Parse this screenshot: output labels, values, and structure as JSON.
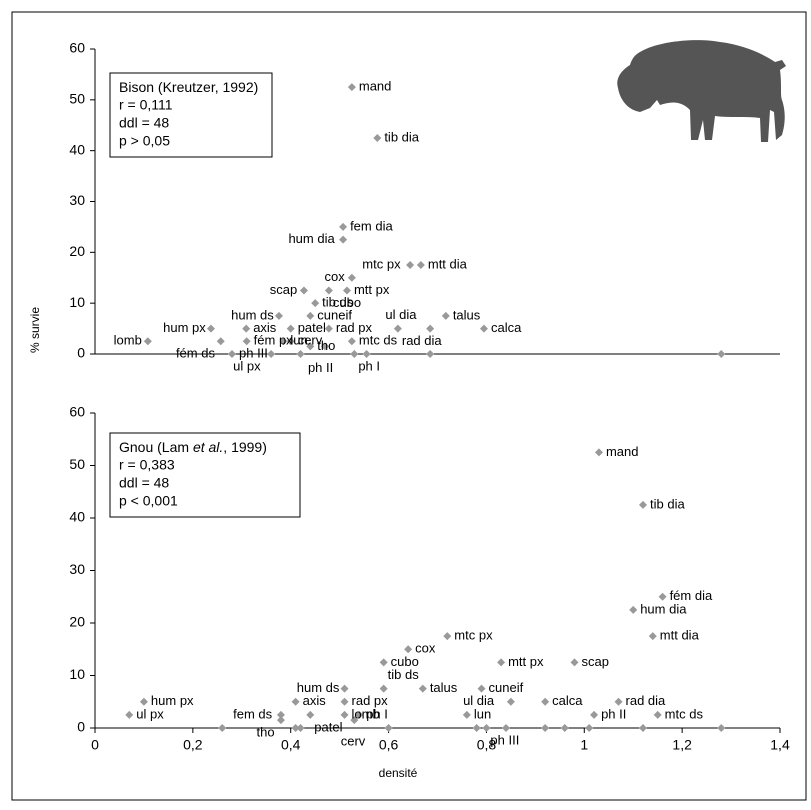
{
  "chart_data": [
    {
      "type": "scatter",
      "ylabel": "% survie",
      "annotation": {
        "title_parts": [
          "Bison (Kreutzer, 1992)"
        ],
        "lines": [
          "r = 0,111",
          "ddl = 48",
          "p > 0,05"
        ]
      },
      "color": "#999999",
      "xlim": [
        0,
        1.4
      ],
      "ylim": [
        0,
        60
      ],
      "yticks": [
        0,
        10,
        20,
        30,
        40,
        50,
        60
      ],
      "point_labels": [
        "mand",
        "tib dia",
        "fem dia",
        "hum dia",
        "mtc px",
        "mtt dia",
        "cox",
        "cubo",
        "mtt px",
        "scap",
        "tib ds",
        "cuneif",
        "hum ds",
        "patel",
        "rad px",
        "axis",
        "hum px",
        "fém px",
        "fém ds",
        "lomb",
        "rad dia",
        "talus",
        "ul dia",
        "calca",
        "mtc ds",
        "ph I",
        "ph II",
        "tho",
        "cerv",
        "lun",
        "ul px",
        "ph III",
        null,
        null,
        null,
        null
      ],
      "x": [
        0.525,
        0.577,
        0.507,
        0.507,
        0.644,
        0.666,
        0.525,
        0.478,
        0.515,
        0.427,
        0.45,
        0.44,
        0.376,
        0.4,
        0.478,
        0.309,
        0.237,
        0.31,
        0.257,
        0.108,
        0.619,
        0.717,
        0.685,
        0.795,
        0.525,
        0.53,
        0.47,
        0.44,
        0.4,
        0.385,
        0.36,
        0.28,
        0.685,
        1.28,
        0.555,
        0.42
      ],
      "values": [
        52.5,
        42.5,
        25,
        22.5,
        17.5,
        17.5,
        15,
        12.5,
        12.5,
        12.5,
        10,
        7.5,
        7.5,
        5,
        5,
        5,
        5,
        2.5,
        2.5,
        2.5,
        5,
        7.5,
        5,
        5,
        2.5,
        0,
        1.5,
        1.5,
        2.5,
        2.5,
        0,
        0,
        0,
        0,
        0,
        0
      ]
    },
    {
      "type": "scatter",
      "xlabel": "densité",
      "annotation": {
        "title_parts": [
          "Gnou (Lam ",
          "et al.",
          ", 1999)"
        ],
        "lines": [
          "r = 0,383",
          "ddl = 48",
          "p < 0,001"
        ]
      },
      "color": "#999999",
      "xlim": [
        0,
        1.4
      ],
      "ylim": [
        0,
        60
      ],
      "yticks": [
        0,
        10,
        20,
        30,
        40,
        50,
        60
      ],
      "xticks": [
        0,
        {
          "value": 0.2,
          "label": "0,2"
        },
        {
          "value": 0.4,
          "label": "0,4"
        },
        {
          "value": 0.6,
          "label": "0,6"
        },
        {
          "value": 0.8,
          "label": "0,8"
        },
        1,
        {
          "value": 1.2,
          "label": "1,2"
        },
        {
          "value": 1.4,
          "label": "1,4"
        }
      ],
      "point_labels": [
        "mand",
        "tib dia",
        "fém dia",
        "hum dia",
        "mtt dia",
        "mtc px",
        "cox",
        "cubo",
        "mtt px",
        "scap",
        "hum ds",
        "tib ds",
        "talus",
        "cuneif",
        "rad px",
        "axis",
        "hum px",
        "rad dia",
        "calca",
        "ul dia",
        "mtc ds",
        "ph II",
        "lun",
        "ph I",
        "fem ds",
        "tho",
        "patel",
        "lomb",
        "cerv",
        "ul px",
        "ph III",
        null,
        null,
        null,
        null,
        null,
        null,
        null,
        null,
        null,
        null,
        null
      ],
      "x": [
        1.03,
        1.12,
        1.16,
        1.1,
        1.14,
        0.72,
        0.64,
        0.59,
        0.83,
        0.98,
        0.51,
        0.59,
        0.67,
        0.79,
        0.51,
        0.41,
        0.1,
        1.07,
        0.92,
        0.85,
        1.15,
        1.02,
        0.76,
        0.54,
        0.38,
        0.38,
        0.44,
        0.51,
        0.53,
        0.07,
        0.8,
        0.26,
        0.41,
        0.42,
        0.6,
        0.78,
        0.92,
        0.96,
        1.01,
        1.12,
        1.28,
        0.84
      ],
      "values": [
        52.5,
        42.5,
        25,
        22.5,
        17.5,
        17.5,
        15,
        12.5,
        12.5,
        12.5,
        7.5,
        7.5,
        7.5,
        7.5,
        5,
        5,
        5,
        5,
        5,
        5,
        2.5,
        2.5,
        2.5,
        2.5,
        2.5,
        1.5,
        2.5,
        2.5,
        1.5,
        2.5,
        0,
        0,
        0,
        0,
        0,
        0,
        0,
        0,
        0,
        0,
        0,
        0
      ]
    }
  ]
}
